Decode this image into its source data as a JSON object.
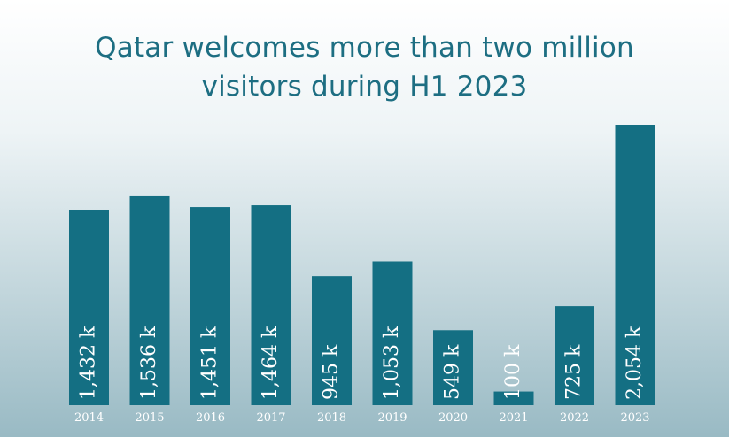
{
  "title_lines": [
    "Qatar welcomes more than two million",
    "visitors during H1 2023"
  ],
  "chart_data": {
    "type": "bar",
    "title": "Qatar welcomes more than two million visitors during H1 2023",
    "categories": [
      "2014",
      "2015",
      "2016",
      "2017",
      "2018",
      "2019",
      "2020",
      "2021",
      "2022",
      "2023"
    ],
    "values": [
      1432,
      1536,
      1451,
      1464,
      945,
      1053,
      549,
      100,
      725,
      2054
    ],
    "value_labels": [
      "1,432 k",
      "1,536 k",
      "1,451 k",
      "1,464 k",
      "945 k",
      "1,053 k",
      "549 k",
      "100 k",
      "725 k",
      "2,054 k"
    ],
    "xlabel": "",
    "ylabel": "",
    "bar_color": "#146f83",
    "title_color": "#1d6e82",
    "grid": false
  }
}
